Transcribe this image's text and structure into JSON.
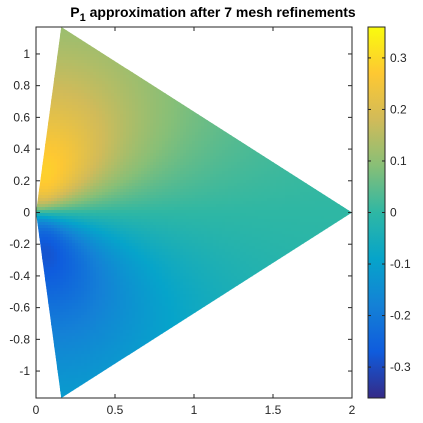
{
  "chart_data": {
    "type": "heatmap",
    "title_main": "P",
    "title_sub": "1",
    "title_rest": " approximation after 7 mesh refinements",
    "xlim": [
      0,
      2
    ],
    "ylim": [
      -1.17,
      1.17
    ],
    "x_ticks": [
      0,
      0.5,
      1,
      1.5,
      2
    ],
    "x_tick_labels": [
      "0",
      "0.5",
      "1",
      "1.5",
      "2"
    ],
    "y_ticks": [
      1,
      0.8,
      0.6,
      0.4,
      0.2,
      0,
      -0.2,
      -0.4,
      -0.6,
      -0.8,
      -1
    ],
    "y_tick_labels": [
      "1",
      "0.8",
      "0.6",
      "0.4",
      "0.2",
      "0",
      "-0.2",
      "-0.4",
      "-0.6",
      "-0.8",
      "-1"
    ],
    "domain_vertices": [
      [
        0,
        0
      ],
      [
        0.16,
        1.17
      ],
      [
        2,
        0
      ],
      [
        0.16,
        -1.17
      ]
    ],
    "colorbar": {
      "colormap": "parula",
      "range": [
        -0.36,
        0.36
      ],
      "ticks": [
        0.3,
        0.2,
        0.1,
        0,
        -0.1,
        -0.2,
        -0.3
      ],
      "tick_labels": [
        "0.3",
        "0.2",
        "0.1",
        "0",
        "-0.1",
        "-0.2",
        "-0.3"
      ]
    },
    "colors": {
      "parula": [
        "#352a87",
        "#0f5cdd",
        "#1481d6",
        "#06a4ca",
        "#2eb7a4",
        "#87bf77",
        "#d1bb59",
        "#fec832",
        "#f9fb0e"
      ]
    }
  }
}
